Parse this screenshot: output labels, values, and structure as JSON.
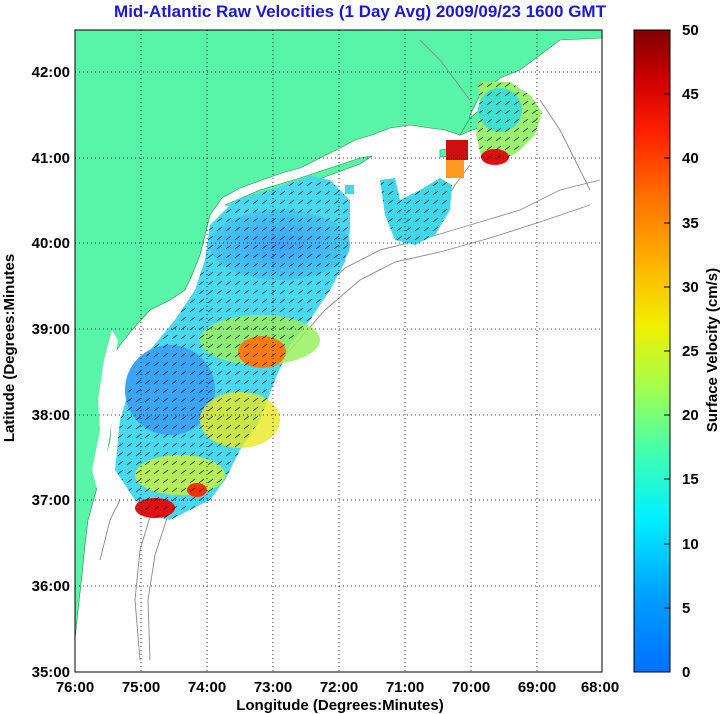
{
  "title": "Mid-Atlantic Raw Velocities (1 Day Avg) 2009/09/23 1600 GMT",
  "xlabel": "Longitude (Degrees:Minutes)",
  "ylabel": "Latitude (Degrees:Minutes",
  "x_ticks": [
    "76:00",
    "75:00",
    "74:00",
    "73:00",
    "72:00",
    "71:00",
    "70:00",
    "69:00",
    "68:00"
  ],
  "y_ticks": [
    "35:00",
    "36:00",
    "37:00",
    "38:00",
    "39:00",
    "40:00",
    "41:00",
    "42:00"
  ],
  "colorbar": {
    "label": "Surface Velocity (cm/s)",
    "ticks": [
      "0",
      "5",
      "10",
      "15",
      "20",
      "25",
      "30",
      "35",
      "40",
      "45",
      "50"
    ],
    "range": [
      0,
      50
    ]
  },
  "colors": {
    "land": "#58f5a8",
    "title": "#1a1ad0",
    "bathymetry": "#888888"
  }
}
